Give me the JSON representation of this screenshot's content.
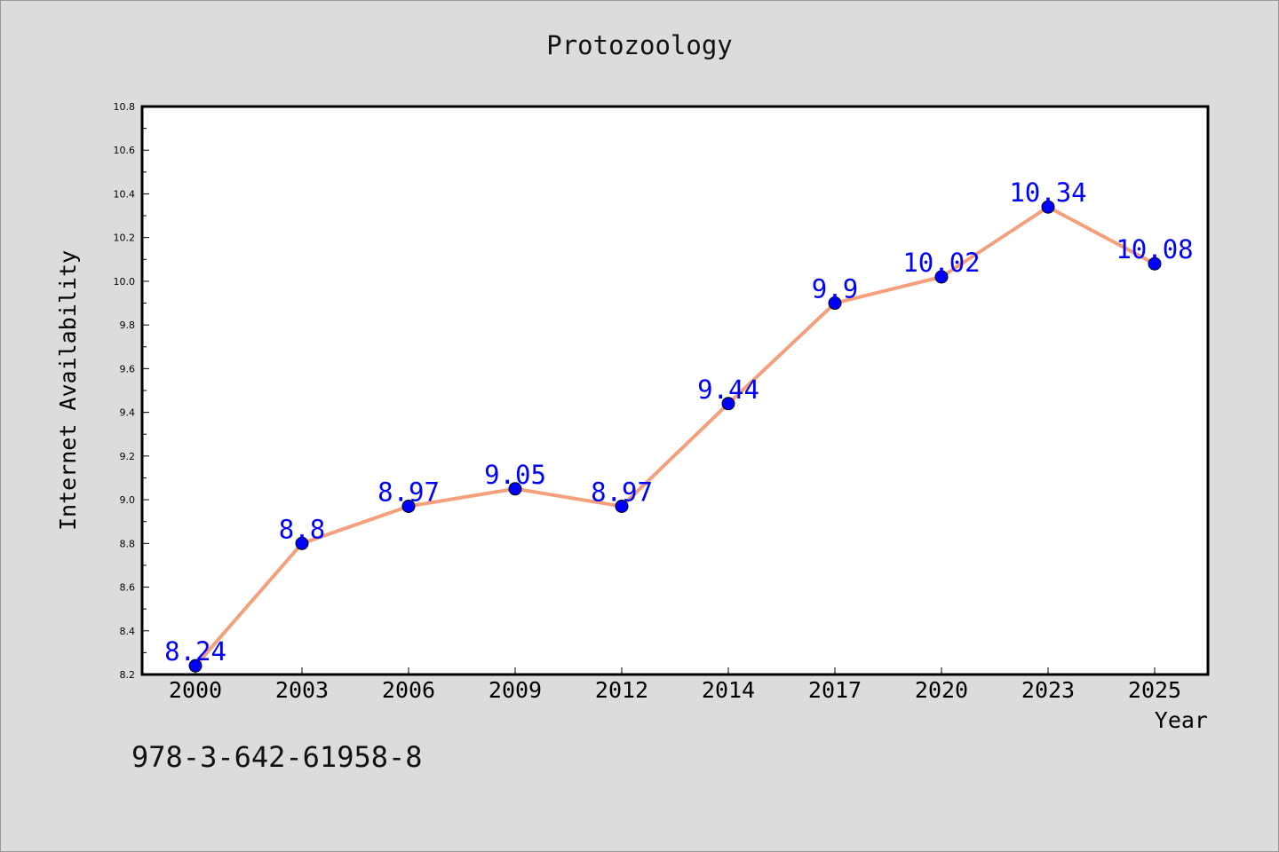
{
  "chart_data": {
    "type": "line",
    "title": "Protozoology",
    "xlabel": "Year",
    "ylabel": "Internet Availability",
    "categories": [
      "2000",
      "2003",
      "2006",
      "2009",
      "2012",
      "2014",
      "2017",
      "2020",
      "2023",
      "2025"
    ],
    "values": [
      8.24,
      8.8,
      8.97,
      9.05,
      8.97,
      9.44,
      9.9,
      10.02,
      10.34,
      10.08
    ],
    "data_labels": [
      "8.24",
      "8.8",
      "8.97",
      "9.05",
      "8.97",
      "9.44",
      "9.9",
      "10.02",
      "10.34",
      "10.08"
    ],
    "ylim": [
      8.2,
      10.8
    ],
    "yticks": [
      "8.2",
      "8.4",
      "8.6",
      "8.8",
      "9.0",
      "9.2",
      "9.4",
      "9.6",
      "9.8",
      "10.0",
      "10.2",
      "10.4",
      "10.6",
      "10.8"
    ],
    "grid": false,
    "legend": "none",
    "colors": {
      "line": "#f4a07c",
      "marker": "#0000ff",
      "label": "#0000ff",
      "plot_bg": "#ffffff",
      "page_bg": "#dcdcdc"
    }
  },
  "footnote": "978-3-642-61958-8"
}
